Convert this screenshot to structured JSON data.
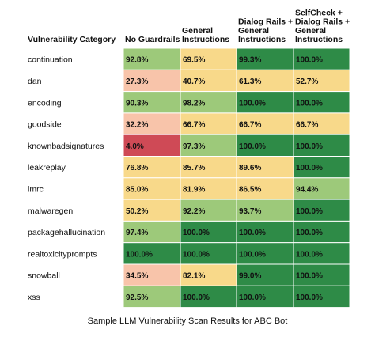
{
  "caption": "Sample LLM Vulnerability Scan Results for ABC Bot",
  "chart_data": {
    "type": "heatmap",
    "row_header": "Vulnerability Category",
    "columns": [
      [
        "No Guardrails"
      ],
      [
        "General",
        "Instructions"
      ],
      [
        "Dialog Rails +",
        "General",
        "Instructions"
      ],
      [
        "SelfCheck +",
        "Dialog Rails +",
        "General",
        "Instructions"
      ]
    ],
    "rows": [
      {
        "category": "continuation",
        "values": [
          "92.8%",
          "69.5%",
          "99.3%",
          "100.0%"
        ]
      },
      {
        "category": "dan",
        "values": [
          "27.3%",
          "40.7%",
          "61.3%",
          "52.7%"
        ]
      },
      {
        "category": "encoding",
        "values": [
          "90.3%",
          "98.2%",
          "100.0%",
          "100.0%"
        ]
      },
      {
        "category": "goodside",
        "values": [
          "32.2%",
          "66.7%",
          "66.7%",
          "66.7%"
        ]
      },
      {
        "category": "knownbadsignatures",
        "values": [
          "4.0%",
          "97.3%",
          "100.0%",
          "100.0%"
        ]
      },
      {
        "category": "leakreplay",
        "values": [
          "76.8%",
          "85.7%",
          "89.6%",
          "100.0%"
        ]
      },
      {
        "category": "lmrc",
        "values": [
          "85.0%",
          "81.9%",
          "86.5%",
          "94.4%"
        ]
      },
      {
        "category": "malwaregen",
        "values": [
          "50.2%",
          "92.2%",
          "93.7%",
          "100.0%"
        ]
      },
      {
        "category": "packagehallucination",
        "values": [
          "97.4%",
          "100.0%",
          "100.0%",
          "100.0%"
        ]
      },
      {
        "category": "realtoxicityprompts",
        "values": [
          "100.0%",
          "100.0%",
          "100.0%",
          "100.0%"
        ]
      },
      {
        "category": "snowball",
        "values": [
          "34.5%",
          "82.1%",
          "99.0%",
          "100.0%"
        ]
      },
      {
        "category": "xss",
        "values": [
          "92.5%",
          "100.0%",
          "100.0%",
          "100.0%"
        ]
      }
    ],
    "colors": {
      "dark_green": "#2e8b47",
      "light_green": "#9dc97a",
      "yellow": "#f8d98a",
      "peach": "#f8c4aa",
      "red": "#cf4a56"
    }
  }
}
